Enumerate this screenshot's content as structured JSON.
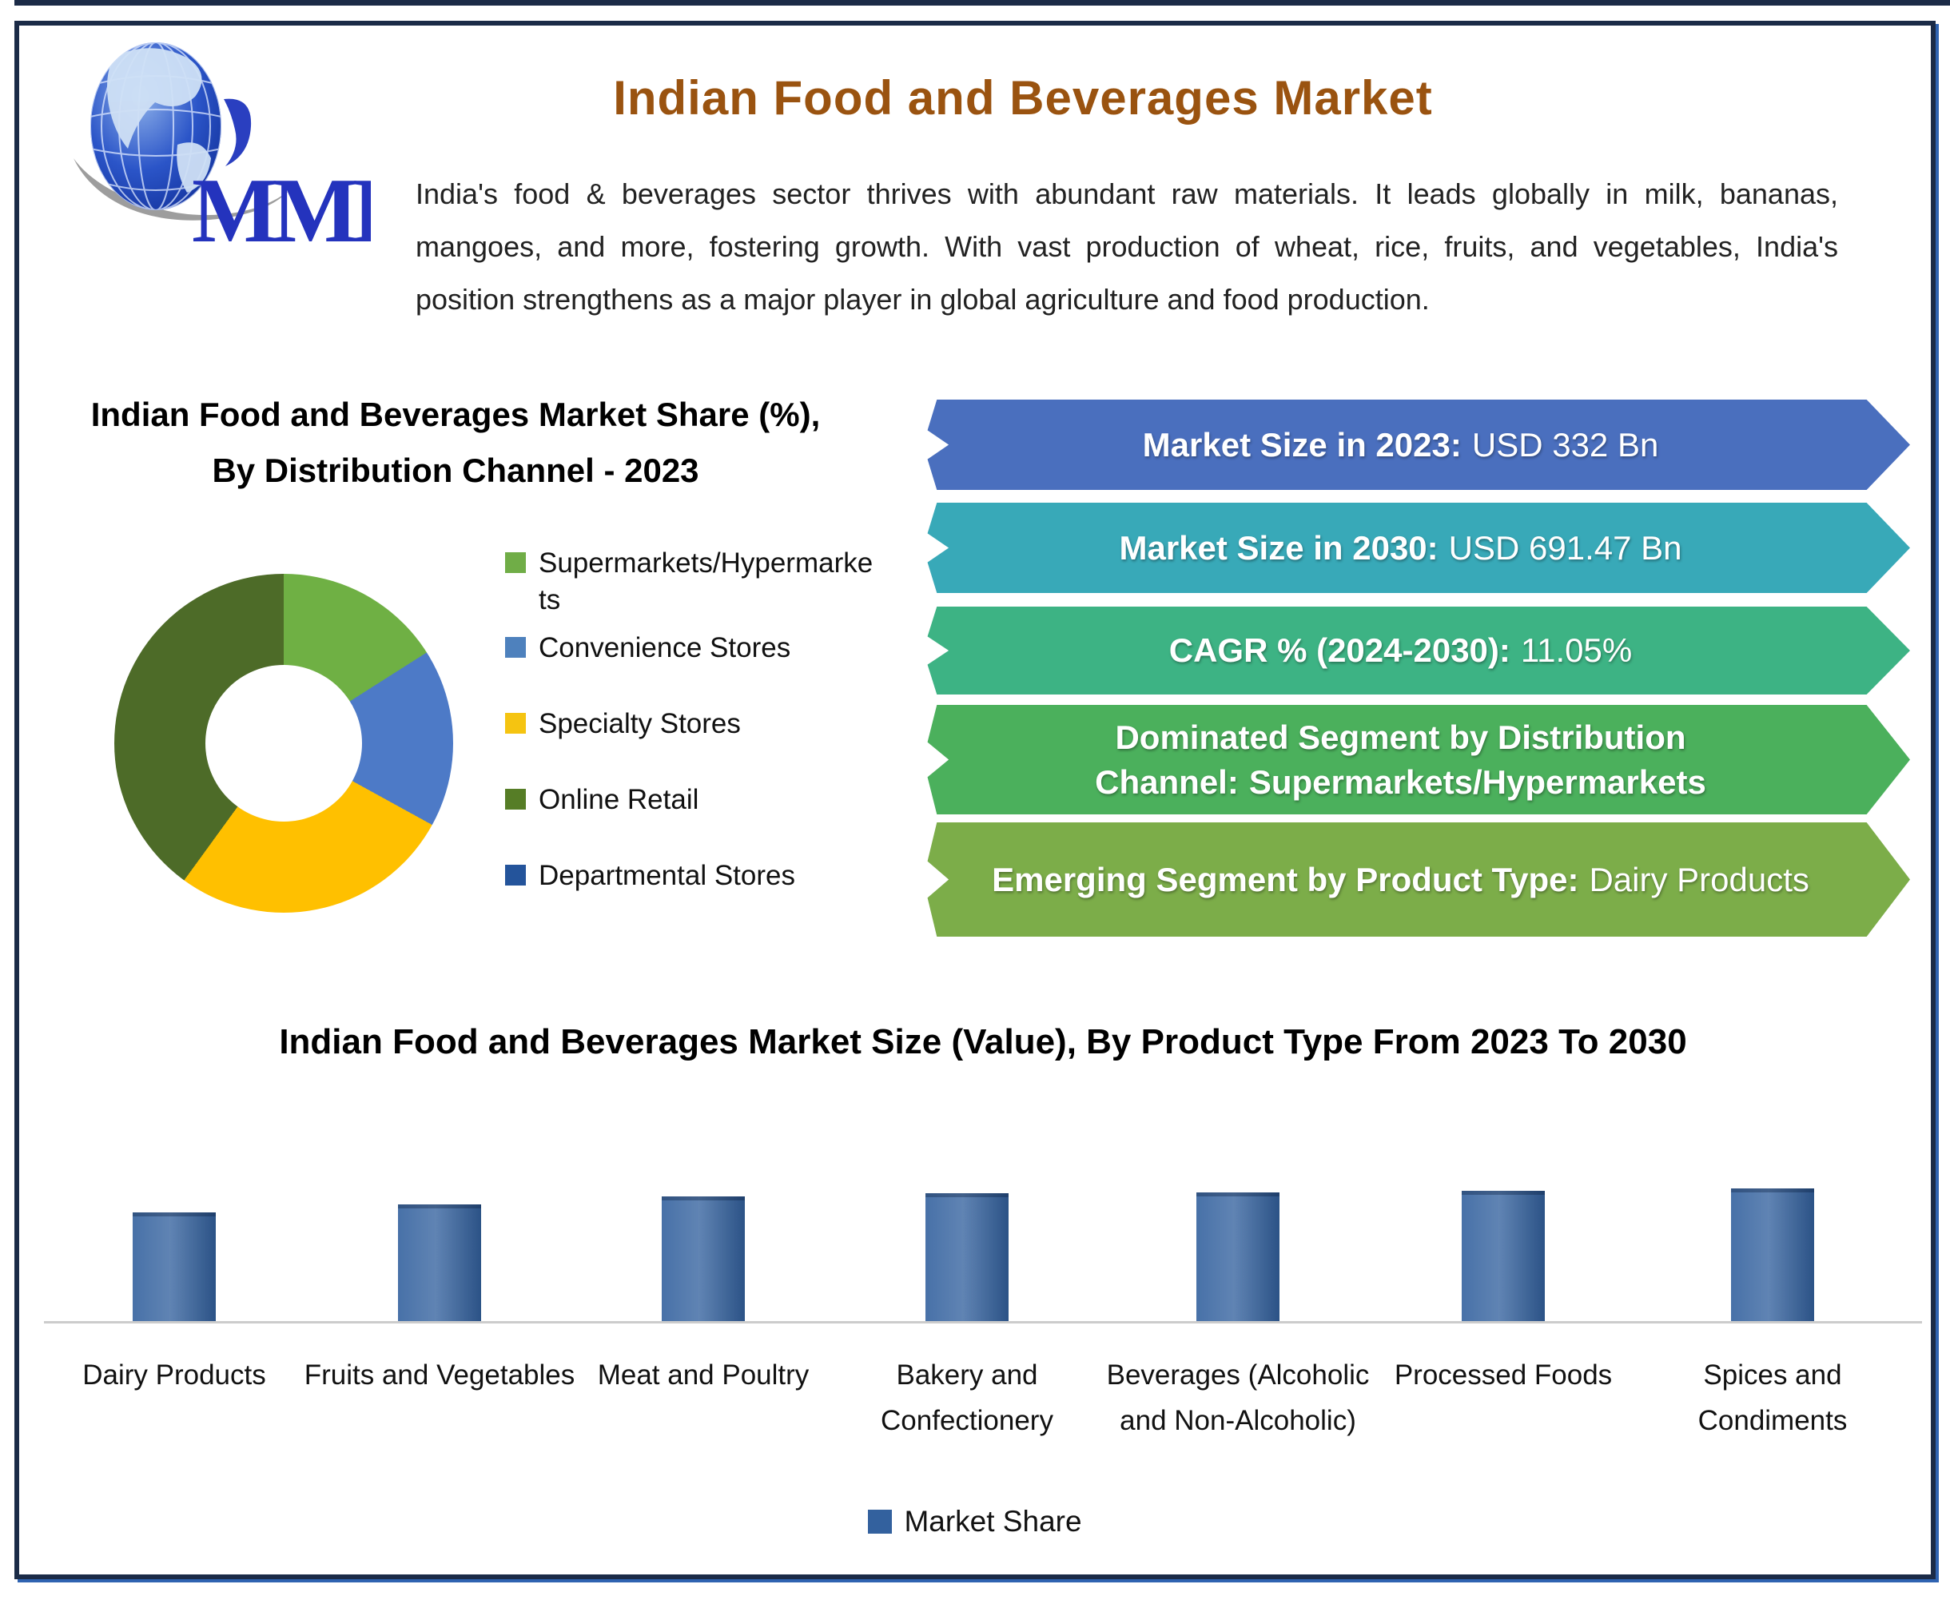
{
  "header": {
    "title": "Indian Food and Beverages Market",
    "description": "India's food & beverages sector thrives with abundant raw materials. It leads globally in milk, bananas, mangoes, and more, fostering growth. With vast production of wheat, rice, fruits, and vegetables, India's position strengthens as a major player in global agriculture and food production."
  },
  "logo": {
    "text": "MMR"
  },
  "colors": {
    "title": "#9a5310",
    "border": "#1b2b47",
    "border_accent": "#2f63b1"
  },
  "banners": [
    {
      "label": "Market Size in 2023:",
      "value": "USD 332 Bn",
      "color": "#4a6fbe"
    },
    {
      "label": "Market Size in 2030:",
      "value": "USD 691.47 Bn",
      "color": "#38a9b8"
    },
    {
      "label": "CAGR % (2024-2030):",
      "value": "11.05%",
      "color": "#3db384"
    },
    {
      "label": "Dominated Segment by Distribution Channel:",
      "value": "Supermarkets/Hypermarkets",
      "color": "#4bb05c",
      "value_bold": true
    },
    {
      "label": "Emerging Segment by Product Type:",
      "value": "Dairy Products",
      "color": "#7cad49"
    }
  ],
  "chart_data": [
    {
      "type": "pie",
      "donut": true,
      "title": "Indian Food and Beverages Market Share (%), By Distribution Channel - 2023",
      "categories": [
        "Supermarkets/Hypermarkets",
        "Convenience Stores",
        "Specialty Stores",
        "Online Retail",
        "Departmental Stores"
      ],
      "values": [
        16,
        17,
        27,
        40,
        0
      ],
      "colors": [
        "#6fb044",
        "#4d7ac7",
        "#ffc000",
        "#4d6b28",
        "#24549b"
      ],
      "legend_colors": [
        "#70ad47",
        "#4e81bd",
        "#f5c411",
        "#567d26",
        "#24549b"
      ],
      "legend_position": "right"
    },
    {
      "type": "bar",
      "title": "Indian Food and Beverages Market Size (Value), By Product Type From 2023 To 2030",
      "categories": [
        "Dairy Products",
        "Fruits and Vegetables",
        "Meat and Poultry",
        "Bakery and Confectionery",
        "Beverages (Alcoholic and Non-Alcoholic)",
        "Processed Foods",
        "Spices and Condiments"
      ],
      "series": [
        {
          "name": "Market Share",
          "values": [
            81,
            87,
            93,
            95,
            96,
            97,
            99
          ]
        }
      ],
      "values": [
        81,
        87,
        93,
        95,
        96,
        97,
        99
      ],
      "bar_color": "#33619e",
      "xlabel": "",
      "ylabel": "",
      "y_axis_visible": false,
      "grid": false,
      "legend_position": "bottom"
    }
  ]
}
